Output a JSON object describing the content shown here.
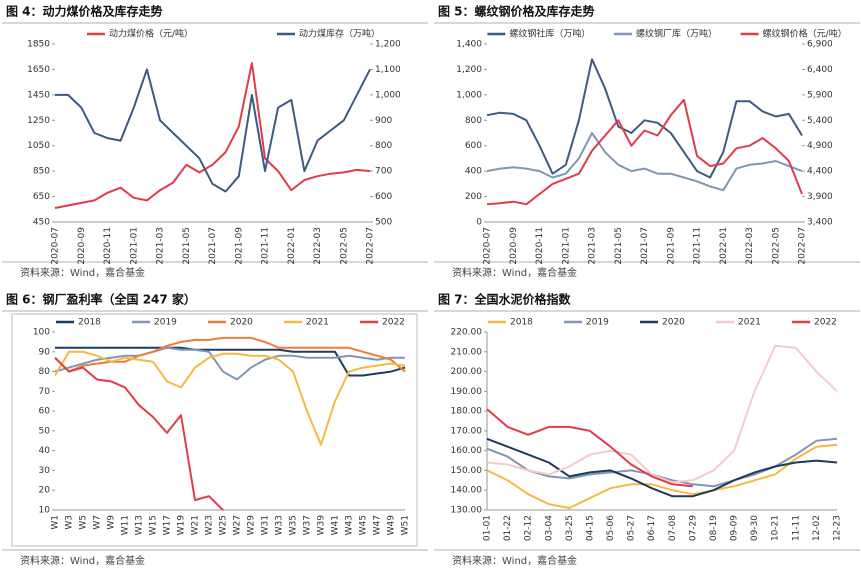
{
  "chart_data": [
    {
      "type": "line",
      "title": "图 4：动力煤价格及库存走势",
      "source": "资料来源：Wind，嘉合基金",
      "categories": [
        "2020-07",
        null,
        "2020-09",
        null,
        "2020-11",
        null,
        "2021-01",
        null,
        "2021-03",
        null,
        "2021-05",
        null,
        "2021-07",
        null,
        "2021-09",
        null,
        "2021-11",
        null,
        "2022-01",
        null,
        "2022-03",
        null,
        "2022-05",
        null,
        "2022-07"
      ],
      "ylim": [
        450,
        1850
      ],
      "yticks": [
        450,
        650,
        850,
        1050,
        1250,
        1450,
        1650,
        1850
      ],
      "y2lim": [
        500,
        1200
      ],
      "y2ticks": [
        500,
        600,
        700,
        800,
        900,
        {
          "value": 1000,
          "label": "1,000"
        },
        {
          "value": 1100,
          "label": "1,100"
        },
        {
          "value": 1200,
          "label": "1,200"
        }
      ],
      "series": [
        {
          "name": "动力煤价格（元/吨）",
          "color": "#e03c4a",
          "values": [
            560,
            580,
            600,
            620,
            680,
            720,
            640,
            620,
            700,
            760,
            900,
            840,
            900,
            1000,
            1200,
            1700,
            950,
            850,
            700,
            780,
            810,
            830,
            840,
            860,
            850
          ]
        },
        {
          "name": "动力煤库存（万吨）",
          "color": "#3d5a80",
          "axis": "y2",
          "values": [
            1000,
            1000,
            950,
            850,
            830,
            820,
            950,
            1100,
            900,
            850,
            800,
            750,
            650,
            620,
            680,
            1000,
            700,
            950,
            980,
            700,
            820,
            860,
            900,
            1000,
            1100
          ]
        }
      ]
    },
    {
      "type": "line",
      "title": "图 5：螺纹钢价格及库存走势",
      "source": "资料来源：Wind，嘉合基金",
      "categories": [
        "2020-07",
        null,
        "2020-09",
        null,
        "2020-11",
        null,
        "2021-01",
        null,
        "2021-03",
        null,
        "2021-05",
        null,
        "2021-07",
        null,
        "2021-09",
        null,
        "2021-11",
        null,
        "2022-01",
        null,
        "2022-03",
        null,
        "2022-05",
        null,
        "2022-07"
      ],
      "ylim": [
        0,
        1400
      ],
      "yticks": [
        0,
        200,
        400,
        600,
        800,
        {
          "value": 1000,
          "label": "1,000"
        },
        {
          "value": 1200,
          "label": "1,200"
        },
        {
          "value": 1400,
          "label": "1,400"
        }
      ],
      "y2lim": [
        3400,
        6900
      ],
      "y2ticks": [
        {
          "value": 3400,
          "label": "3,400"
        },
        {
          "value": 3900,
          "label": "3,900"
        },
        {
          "value": 4400,
          "label": "4,400"
        },
        {
          "value": 4900,
          "label": "4,900"
        },
        {
          "value": 5400,
          "label": "5,400"
        },
        {
          "value": 5900,
          "label": "5,900"
        },
        {
          "value": 6400,
          "label": "6,400"
        },
        {
          "value": 6900,
          "label": "6,900"
        }
      ],
      "series": [
        {
          "name": "螺纹钢社库（万吨）",
          "color": "#3d5a80",
          "values": [
            840,
            860,
            850,
            800,
            600,
            380,
            450,
            800,
            1280,
            1050,
            750,
            700,
            800,
            780,
            700,
            550,
            400,
            350,
            550,
            950,
            950,
            870,
            830,
            850,
            680
          ]
        },
        {
          "name": "螺纹钢厂库（万吨）",
          "color": "#8096b3",
          "values": [
            400,
            420,
            430,
            420,
            400,
            350,
            380,
            500,
            700,
            550,
            450,
            400,
            420,
            380,
            380,
            350,
            320,
            280,
            250,
            420,
            450,
            460,
            480,
            440,
            400
          ]
        },
        {
          "name": "螺纹钢价格（元/吨）",
          "color": "#e03c4a",
          "axis": "y2",
          "values": [
            3750,
            3770,
            3800,
            3750,
            3950,
            4150,
            4250,
            4350,
            4800,
            5100,
            5400,
            4900,
            5200,
            5100,
            5500,
            5800,
            4700,
            4500,
            4550,
            4850,
            4900,
            5050,
            4850,
            4600,
            3950
          ]
        }
      ]
    },
    {
      "type": "line",
      "title": "图 6：钢厂盈利率（全国 247 家）",
      "source": "资料来源：Wind，嘉合基金",
      "frame": true,
      "categories": [
        "W1",
        "W3",
        "W5",
        "W7",
        "W9",
        "W11",
        "W13",
        "W15",
        "W17",
        "W19",
        "W21",
        "W23",
        "W25",
        "W27",
        "W29",
        "W31",
        "W33",
        "W35",
        "W37",
        "W39",
        "W41",
        "W43",
        "W45",
        "W47",
        "W49",
        "W51"
      ],
      "ylim": [
        10,
        100
      ],
      "yticks": [
        10,
        20,
        30,
        40,
        50,
        60,
        70,
        80,
        90,
        100
      ],
      "series": [
        {
          "name": "2018",
          "color": "#1f3b5e",
          "values": [
            92,
            92,
            92,
            92,
            92,
            92,
            92,
            92,
            92,
            92,
            91,
            91,
            91,
            91,
            91,
            91,
            91,
            90,
            90,
            90,
            90,
            78,
            78,
            79,
            80,
            82
          ]
        },
        {
          "name": "2019",
          "color": "#8096b3",
          "values": [
            80,
            82,
            84,
            86,
            87,
            88,
            88,
            90,
            92,
            91,
            91,
            90,
            80,
            76,
            82,
            86,
            88,
            88,
            87,
            87,
            87,
            88,
            87,
            86,
            87,
            87
          ]
        },
        {
          "name": "2020",
          "color": "#f07c3a",
          "values": [
            87,
            80,
            83,
            84,
            85,
            85,
            88,
            90,
            93,
            95,
            96,
            96,
            97,
            97,
            97,
            95,
            92,
            92,
            92,
            92,
            92,
            92,
            90,
            88,
            86,
            80
          ]
        },
        {
          "name": "2021",
          "color": "#f5b942",
          "values": [
            78,
            90,
            90,
            88,
            85,
            87,
            86,
            85,
            75,
            72,
            82,
            87,
            89,
            89,
            88,
            88,
            86,
            80,
            60,
            43,
            65,
            80,
            82,
            83,
            84,
            83
          ]
        },
        {
          "name": "2022",
          "color": "#e03c4a",
          "values": [
            87,
            80,
            82,
            76,
            75,
            72,
            63,
            57,
            49,
            58,
            15,
            17,
            10,
            null,
            null,
            null,
            null,
            null,
            null,
            null,
            null,
            null,
            null,
            null,
            null,
            null
          ]
        }
      ]
    },
    {
      "type": "line",
      "title": "图 7：全国水泥价格指数",
      "source": "资料来源：Wind，嘉合基金",
      "categories": [
        "01-01",
        "01-22",
        "02-12",
        "03-04",
        "03-25",
        "04-15",
        "05-06",
        "05-27",
        "06-17",
        "07-08",
        "07-29",
        "08-19",
        "09-09",
        "09-30",
        "10-21",
        "11-11",
        "12-02",
        "12-23"
      ],
      "ylim": [
        130,
        220
      ],
      "yticks": [
        {
          "value": 130,
          "label": "130.00"
        },
        {
          "value": 140,
          "label": "140.00"
        },
        {
          "value": 150,
          "label": "150.00"
        },
        {
          "value": 160,
          "label": "160.00"
        },
        {
          "value": 170,
          "label": "170.00"
        },
        {
          "value": 180,
          "label": "180.00"
        },
        {
          "value": 190,
          "label": "190.00"
        },
        {
          "value": 200,
          "label": "200.00"
        },
        {
          "value": 210,
          "label": "210.00"
        },
        {
          "value": 220,
          "label": "220.00"
        }
      ],
      "series": [
        {
          "name": "2018",
          "color": "#f5b942",
          "values": [
            150,
            145,
            138,
            133,
            131,
            136,
            141,
            143,
            143,
            140,
            138,
            140,
            142,
            145,
            148,
            156,
            162,
            163
          ]
        },
        {
          "name": "2019",
          "color": "#8096b3",
          "values": [
            161,
            157,
            150,
            147,
            146,
            148,
            149,
            150,
            148,
            145,
            143,
            142,
            145,
            148,
            152,
            158,
            165,
            166
          ]
        },
        {
          "name": "2020",
          "color": "#1f3b5e",
          "values": [
            166,
            162,
            158,
            154,
            147,
            149,
            150,
            146,
            141,
            137,
            137,
            140,
            145,
            149,
            152,
            154,
            155,
            154
          ]
        },
        {
          "name": "2021",
          "color": "#f6c8cf",
          "values": [
            154,
            153,
            150,
            148,
            152,
            158,
            160,
            158,
            148,
            144,
            145,
            150,
            160,
            190,
            213,
            212,
            200,
            190
          ]
        },
        {
          "name": "2022",
          "color": "#e03c4a",
          "values": [
            181,
            172,
            168,
            172,
            172,
            170,
            162,
            153,
            147,
            143,
            142,
            null,
            null,
            null,
            null,
            null,
            null,
            null
          ]
        }
      ]
    }
  ]
}
